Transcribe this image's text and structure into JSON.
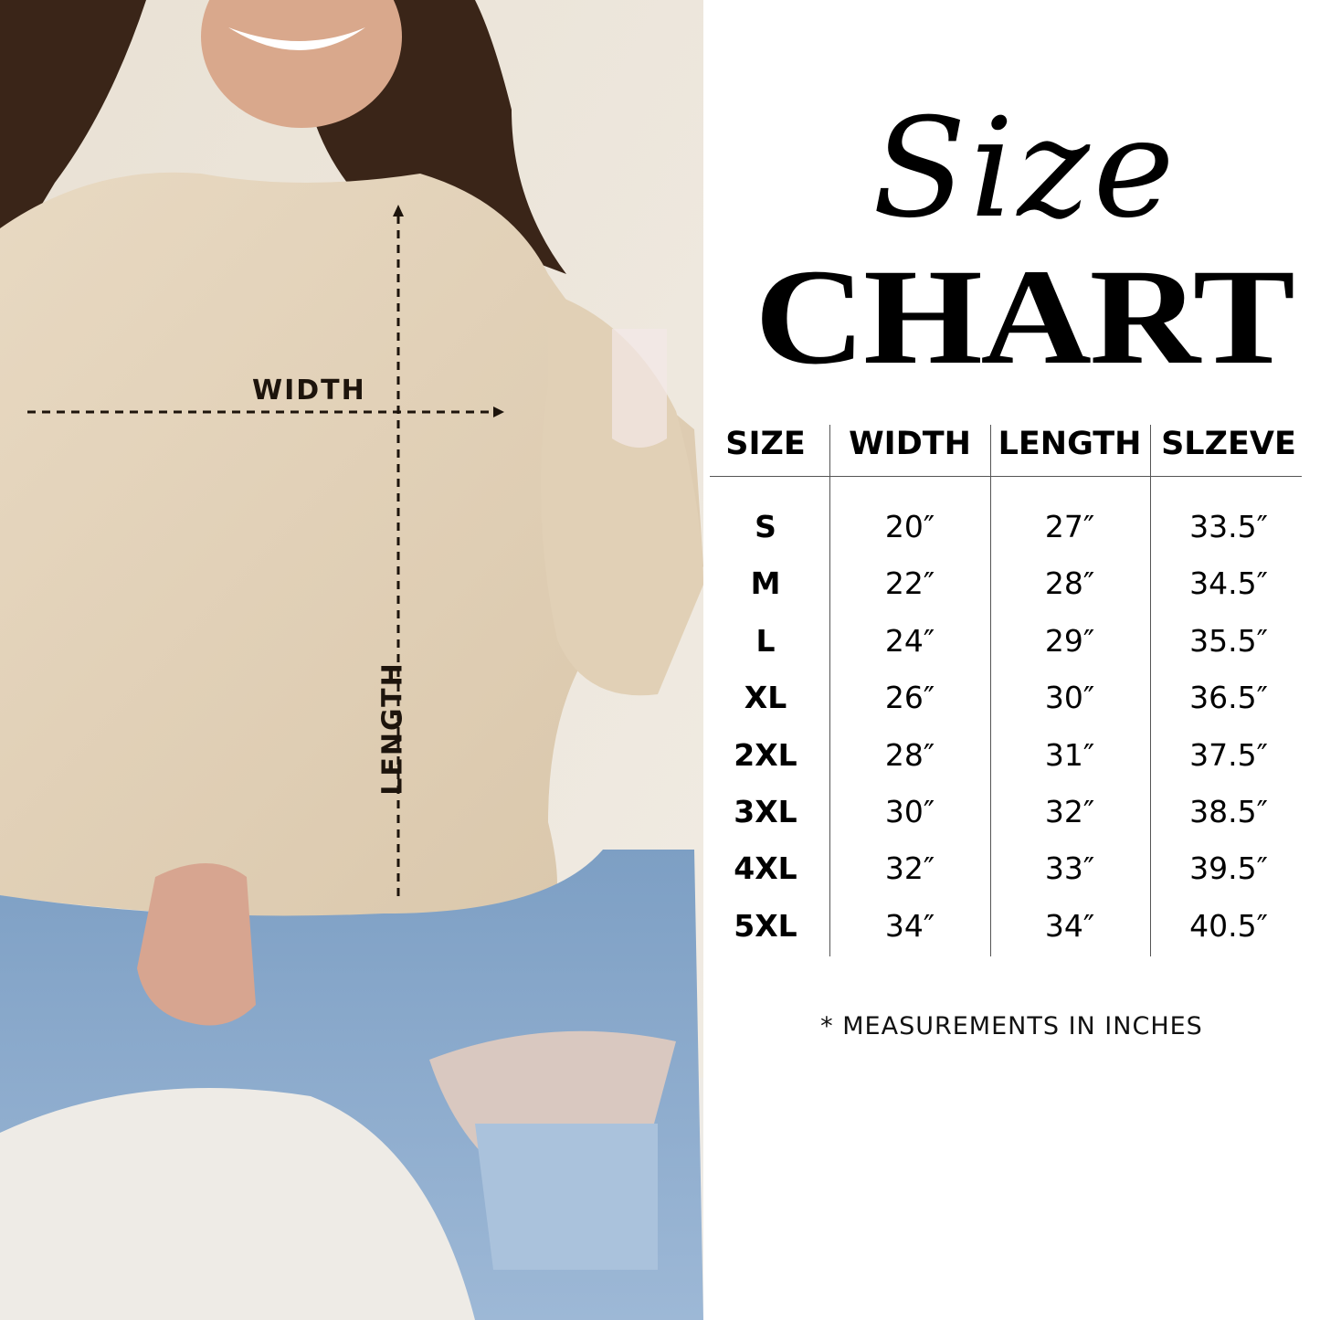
{
  "photo": {
    "width_label": "WIDTH",
    "length_label": "LENGTH",
    "colors": {
      "sweater": "#e4d4bc",
      "jeans": "#7d9fc4",
      "hair": "#3a2518",
      "wall": "#ece6dc"
    }
  },
  "title": {
    "script": "Size",
    "main": "CHART"
  },
  "table": {
    "headers": [
      "SIZE",
      "WIDTH",
      "LENGTH",
      "SLZEVE"
    ],
    "rows": [
      [
        "S",
        "20″",
        "27″",
        "33.5″"
      ],
      [
        "M",
        "22″",
        "28″",
        "34.5″"
      ],
      [
        "L",
        "24″",
        "29″",
        "35.5″"
      ],
      [
        "XL",
        "26″",
        "30″",
        "36.5″"
      ],
      [
        "2XL",
        "28″",
        "31″",
        "37.5″"
      ],
      [
        "3XL",
        "30″",
        "32″",
        "38.5″"
      ],
      [
        "4XL",
        "32″",
        "33″",
        "39.5″"
      ],
      [
        "5XL",
        "34″",
        "34″",
        "40.5″"
      ]
    ]
  },
  "footnote": "* MEASUREMENTS IN INCHES"
}
